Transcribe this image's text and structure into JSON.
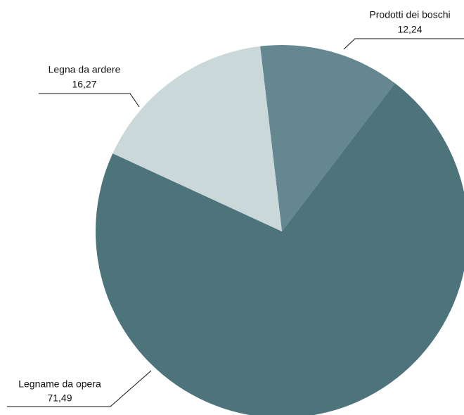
{
  "chart_data": {
    "type": "pie",
    "categories": [
      "Prodotti dei boschi",
      "Legname da opera",
      "Legna da ardere"
    ],
    "values": [
      12.24,
      71.49,
      16.27
    ],
    "value_labels": [
      "12,24",
      "71,49",
      "16,27"
    ],
    "colors": [
      "#658790",
      "#4d737b",
      "#cbd8da"
    ]
  }
}
